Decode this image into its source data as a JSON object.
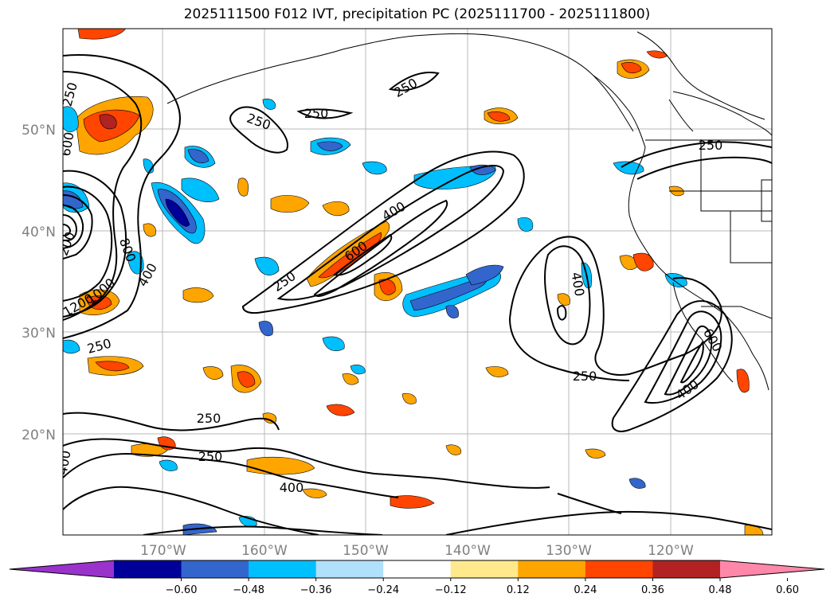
{
  "title": "2025111500 F012 IVT, precipitation PC (2025111700 - 2025111800)",
  "lat_labels": [
    "50°N",
    "40°N",
    "30°N",
    "20°N"
  ],
  "lon_labels": [
    "170°W",
    "160°W",
    "150°W",
    "140°W",
    "130°W",
    "120°W"
  ],
  "colorbar": {
    "colors": [
      "#9933cc",
      "#000099",
      "#3366cc",
      "#00bfff",
      "#b0e0fa",
      "#ffffff",
      "#ffe98c",
      "#ffa500",
      "#ff4500",
      "#b22222",
      "#ff88aa"
    ],
    "tick_labels": [
      "−0.60",
      "−0.48",
      "−0.36",
      "−0.24",
      "−0.12",
      "0.12",
      "0.24",
      "0.36",
      "0.48",
      "0.60"
    ]
  },
  "contour_labels": [
    "250",
    "250",
    "250",
    "250",
    "250",
    "250",
    "250",
    "250",
    "250",
    "250",
    "400",
    "400",
    "400",
    "400",
    "400",
    "400",
    "600",
    "600",
    "600",
    "800",
    "1000",
    "1200",
    "200"
  ]
}
